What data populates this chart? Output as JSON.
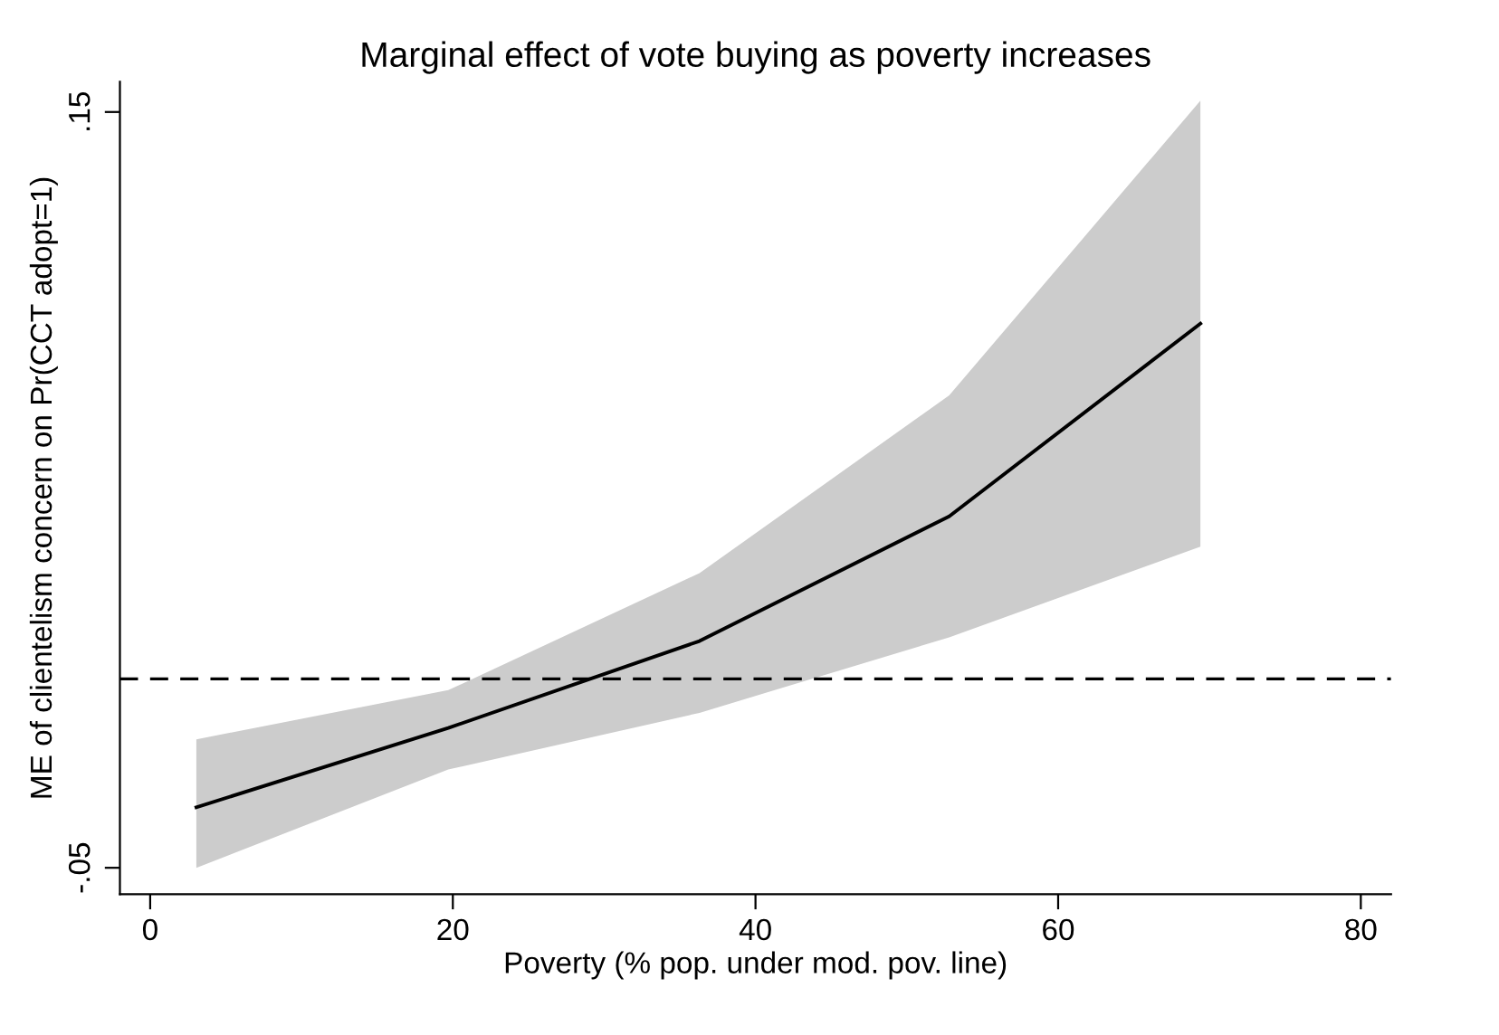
{
  "chart_data": {
    "type": "line",
    "title": "Marginal effect of vote buying as poverty increases",
    "xlabel": "Poverty (% pop. under mod. pov. line)",
    "ylabel": "ME of clientelism concern on Pr(CCT adopt=1)",
    "x": [
      3.05,
      19.7,
      36.3,
      52.8,
      69.4
    ],
    "series": [
      {
        "color": "#000000",
        "values": [
          -0.034,
          -0.013,
          0.01,
          0.043,
          0.094
        ],
        "lower": [
          -0.05,
          -0.024,
          -0.009,
          0.011,
          0.035
        ],
        "upper": [
          -0.016,
          -0.003,
          0.028,
          0.075,
          0.153
        ]
      }
    ],
    "xlim": [
      -2,
      82
    ],
    "ylim": [
      -0.057,
      0.158
    ],
    "xticks": [
      0,
      20,
      40,
      60,
      80
    ],
    "yticks": [
      {
        "value": -0.05,
        "label": "-.05"
      },
      {
        "value": 0.15,
        "label": ".15"
      }
    ],
    "ref_lines": [
      {
        "axis": "y",
        "value": 0,
        "color": "#000000",
        "line_style": "dashed"
      }
    ],
    "grid": false,
    "legend": false,
    "marker": "none",
    "line_style": "solid"
  }
}
